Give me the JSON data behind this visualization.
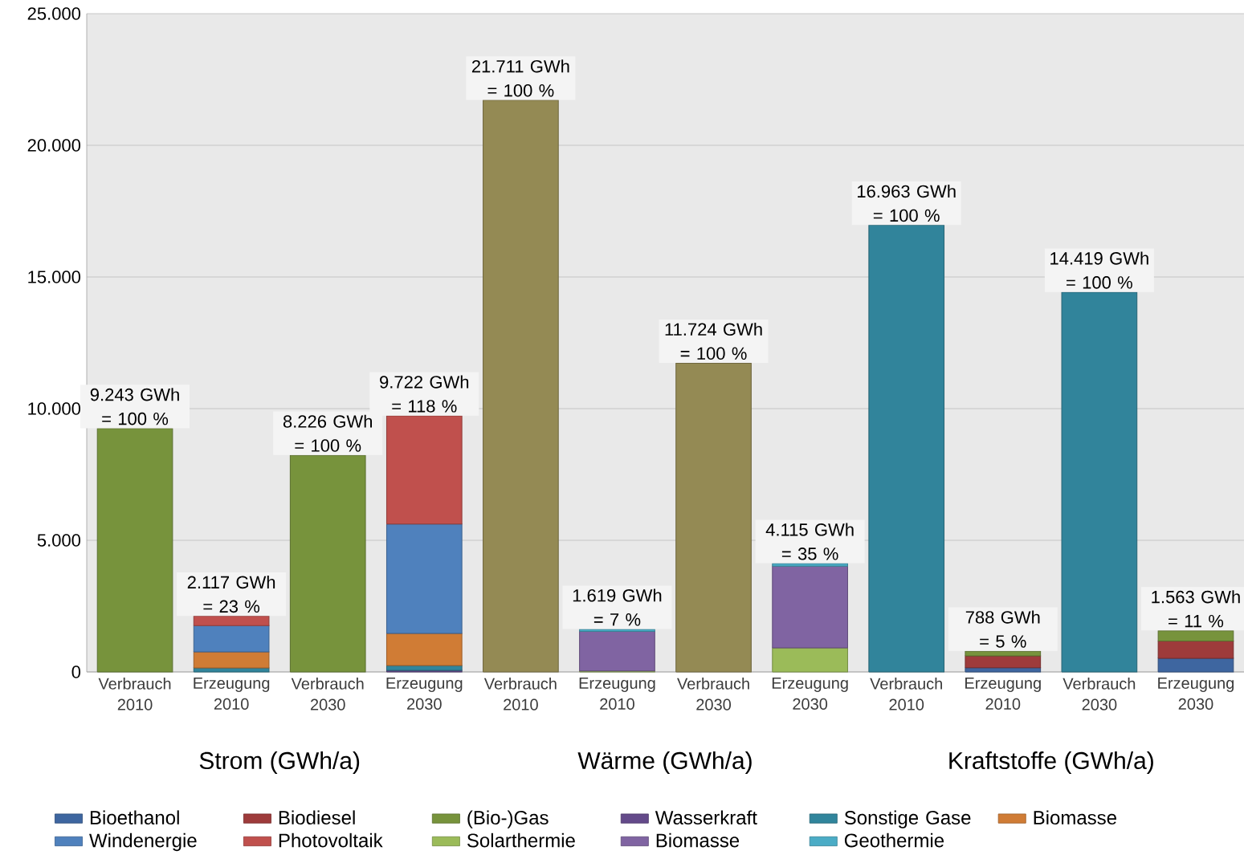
{
  "chart_data": {
    "type": "bar",
    "stacked": true,
    "categories": [
      "Verbrauch 2010",
      "Erzeugung 2010",
      "Verbrauch 2030",
      "Erzeugung 2030",
      "Verbrauch 2010",
      "Erzeugung 2010",
      "Verbrauch 2030",
      "Erzeugung 2030",
      "Verbrauch 2010",
      "Erzeugung 2010",
      "Verbrauch 2030",
      "Erzeugung 2030"
    ],
    "series": [
      {
        "colors": [
          "#77933c",
          null,
          "#77933c",
          null,
          "#948a54",
          null,
          "#948a54",
          null,
          "#31849b",
          null,
          "#31849b",
          null
        ],
        "values": [
          9243,
          null,
          8226,
          null,
          21711,
          null,
          11724,
          null,
          16963,
          null,
          14419,
          null
        ]
      },
      {
        "name": "Bioethanol",
        "color": "#3e66a0",
        "values": [
          null,
          null,
          null,
          null,
          null,
          null,
          null,
          null,
          null,
          160,
          null,
          520
        ]
      },
      {
        "name": "Biodiesel",
        "color": "#9e3b3b",
        "values": [
          null,
          null,
          null,
          null,
          null,
          null,
          null,
          null,
          null,
          450,
          null,
          650
        ]
      },
      {
        "name": "(Bio-)Gas",
        "color": "#77933c",
        "values": [
          null,
          null,
          null,
          null,
          null,
          null,
          null,
          null,
          null,
          178,
          null,
          393
        ]
      },
      {
        "name": "Wasserkraft",
        "color": "#644a8a",
        "values": [
          null,
          null,
          null,
          60,
          null,
          null,
          null,
          null,
          null,
          null,
          null,
          null
        ]
      },
      {
        "name": "Sonstige Gase",
        "color": "#31859c",
        "values": [
          null,
          150,
          null,
          180,
          null,
          null,
          null,
          null,
          null,
          null,
          null,
          null
        ]
      },
      {
        "name": "Biomasse",
        "color": "#d07c35",
        "values": [
          null,
          610,
          null,
          1220,
          null,
          null,
          null,
          null,
          null,
          null,
          null,
          null
        ]
      },
      {
        "name": "Windenergie",
        "color": "#4f81bd",
        "values": [
          null,
          1000,
          null,
          4160,
          null,
          null,
          null,
          null,
          null,
          null,
          null,
          null
        ]
      },
      {
        "name": "Photovoltaik",
        "color": "#c0504d",
        "values": [
          null,
          357,
          null,
          4102,
          null,
          null,
          null,
          null,
          null,
          null,
          null,
          null
        ]
      },
      {
        "name": "Solarthermie",
        "color": "#9bbb59",
        "values": [
          null,
          null,
          null,
          null,
          null,
          40,
          null,
          915,
          null,
          null,
          null,
          null
        ]
      },
      {
        "name": "Biomasse",
        "color": "#8064a2",
        "values": [
          null,
          null,
          null,
          null,
          null,
          1500,
          null,
          3100,
          null,
          null,
          null,
          null
        ]
      },
      {
        "name": "Geothermie",
        "color": "#4bacc6",
        "values": [
          null,
          null,
          null,
          null,
          null,
          79,
          null,
          100,
          null,
          null,
          null,
          null
        ]
      }
    ],
    "totals": [
      "9.243 GWh = 100 %",
      "2.117 GWh = 23 %",
      "8.226 GWh = 100 %",
      "9.722 GWh = 118 %",
      "21.711 GWh = 100 %",
      "1.619 GWh = 7 %",
      "11.724 GWh = 100 %",
      "4.115 GWh = 35 %",
      "16.963 GWh = 100 %",
      "788 GWh = 5 %",
      "14.419 GWh = 100 %",
      "1.563 GWh = 11 %"
    ],
    "annotations": [
      "Strom (GWh/a)",
      "Wärme (GWh/a)",
      "Kraftstoffe (GWh/a)"
    ],
    "ylim": [
      0,
      25000
    ],
    "yticks": [
      {
        "value": 0,
        "label": "0"
      },
      {
        "value": 5000,
        "label": "5.000"
      },
      {
        "value": 10000,
        "label": "10.000"
      },
      {
        "value": 15000,
        "label": "15.000"
      },
      {
        "value": 20000,
        "label": "20.000"
      },
      {
        "value": 25000,
        "label": "25.000"
      }
    ],
    "grid": "y",
    "legend": "bottom"
  }
}
